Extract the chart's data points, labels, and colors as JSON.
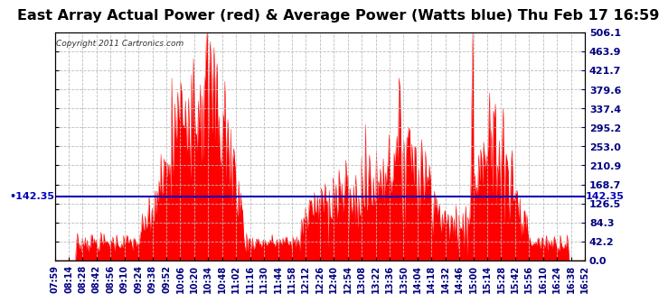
{
  "title": "East Array Actual Power (red) & Average Power (Watts blue) Thu Feb 17 16:59",
  "copyright_text": "Copyright 2011 Cartronics.com",
  "y_max": 506.1,
  "y_min": 0.0,
  "average_line_y": 142.35,
  "average_line_label": "142.35",
  "ytick_values": [
    0.0,
    42.2,
    84.3,
    126.5,
    168.7,
    210.9,
    253.0,
    295.2,
    337.4,
    379.6,
    421.7,
    463.9,
    506.1
  ],
  "ytick_labels": [
    "0.0",
    "42.2",
    "84.3",
    "126.5",
    "168.7",
    "210.9",
    "253.0",
    "295.2",
    "337.4",
    "379.6",
    "421.7",
    "463.9",
    "506.1"
  ],
  "x_labels": [
    "07:59",
    "08:14",
    "08:28",
    "08:42",
    "08:56",
    "09:10",
    "09:24",
    "09:38",
    "09:52",
    "10:06",
    "10:20",
    "10:34",
    "10:48",
    "11:02",
    "11:16",
    "11:30",
    "11:44",
    "11:58",
    "12:12",
    "12:26",
    "12:40",
    "12:54",
    "13:08",
    "13:22",
    "13:36",
    "13:50",
    "14:04",
    "14:18",
    "14:32",
    "14:46",
    "15:00",
    "15:14",
    "15:28",
    "15:42",
    "15:56",
    "16:10",
    "16:24",
    "16:38",
    "16:52"
  ],
  "fill_color": "#FF0000",
  "line_color": "#FF0000",
  "avg_line_color": "#0000BB",
  "bg_color": "#FFFFFF",
  "plot_bg_color": "#FFFFFF",
  "grid_color": "#BBBBBB",
  "title_fontsize": 11.5,
  "tick_fontsize": 8,
  "n_points": 540
}
